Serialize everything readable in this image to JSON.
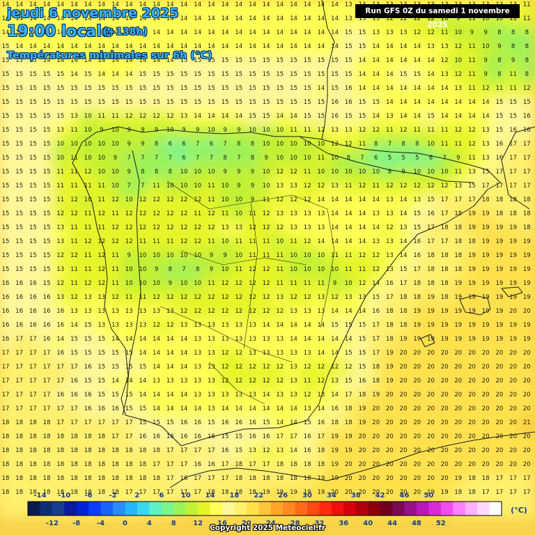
{
  "header": {
    "date": "jeudi 6 novembre 2025",
    "local_time": "19:00 locale",
    "forecast_step": "(+138h)",
    "variable": "Températures minimales sur 6h (°C)"
  },
  "run_info": "Run GFS 0Z du samedi 1 novembre 2025",
  "copyright": "Copyright 2025 Meteociel.fr",
  "legend": {
    "unit": "(°C)",
    "top_labels": [
      "-14",
      "-10",
      "-6",
      "-2",
      "2",
      "6",
      "10",
      "14",
      "18",
      "22",
      "26",
      "30",
      "34",
      "38",
      "42",
      "46",
      "50"
    ],
    "bottom_labels": [
      "-12",
      "-8",
      "-4",
      "0",
      "4",
      "8",
      "12",
      "16",
      "20",
      "24",
      "28",
      "32",
      "36",
      "40",
      "44",
      "48",
      "52"
    ],
    "colors": [
      "#0b1b4d",
      "#0d2f72",
      "#163d8f",
      "#0a1aa3",
      "#0021d6",
      "#0b3cff",
      "#1a63ff",
      "#2a8cff",
      "#26b6ff",
      "#39d8f2",
      "#5ef0c0",
      "#7cf58e",
      "#9cf25a",
      "#c2f034",
      "#e6f52a",
      "#ffff55",
      "#fff799",
      "#fff06e",
      "#ffe14d",
      "#ffc53a",
      "#ffa62a",
      "#ff8a1f",
      "#ff6a18",
      "#ff4a12",
      "#ff2a0e",
      "#f2100a",
      "#d4000e",
      "#b0000e",
      "#8c000e",
      "#700020",
      "#7a0a55",
      "#96108a",
      "#b818b8",
      "#d82ad8",
      "#f04cf0",
      "#ff80ff",
      "#ffb0ff",
      "#ffd8ff",
      "#ffffff"
    ]
  },
  "colors": {
    "title": "#39b4ff",
    "title_outline": "#0a2a55",
    "land_border": "#1a1a1a"
  },
  "grid": {
    "rows": [
      "14 14 14 14 14 14 14 14 14 14 14 14 14 14 14 14 14 14 14 14 14 14 14 14 14 13 13 13 13 13 13 13 13 13 13 13 13 13 11",
      "14 14 14 14 14 14 14 14 14 14 14 14 14 14 14 14 14 14 14 14 14 14 14 14 14 13 13 13 12 12 12 12 10 9 11 10 10 11 11",
      "14 14 14 14 14 14 14 14 14 14 14 14 14 14 14 14 14 14 14 14 14 14 14 14 14 15 15 13 13 13 12 12 11 10 9 9 8 8 8",
      "15 14 14 14 14 14 14 14 14 14 14 14 14 14 14 14 14 14 14 14 14 14 14 14 14 15 15 14 14 14 14 13 13 12 11 10 9 8 8",
      "15 15 15 14 14 14 14 14 14 14 14 14 14 15 15 15 15 15 15 15 15 15 15 15 15 15 14 14 14 14 14 14 12 10 11 9 8 9 8",
      "15 15 15 15 15 14 15 14 14 14 15 15 15 15 15 15 15 15 15 15 15 15 15 15 15 15 14 14 14 15 15 14 13 12 11 9 8 11 8",
      "15 15 15 15 15 15 15 15 15 15 15 15 15 15 15 15 15 15 15 15 15 15 15 14 15 16 14 14 14 14 14 14 14 13 11 12 11 11 12",
      "15 15 15 15 15 15 15 15 15 15 15 15 15 15 15 15 15 15 15 15 15 15 15 15 16 16 15 15 14 14 14 14 14 14 14 14 15 15 15",
      "15 15 15 15 15 13 10 11 11 12 12 12 12 13 14 14 14 14 15 15 14 14 15 15 16 15 15 14 13 14 14 15 14 14 14 14 15 15 16",
      "15 15 15 15 13 11 10 9 10 9 9 9 10 9 9 10 9 9 10 10 10 11 11 12 13 13 12 12 11 12 11 11 11 12 12 13 15 16 16",
      "15 15 15 15 10 10 10 10 10 9 9 8 6 6 7 6 7 8 8 10 10 10 10 10 12 12 11 8 7 8 8 10 11 11 12 13 16 17 17",
      "15 15 15 15 10 11 10 10 9 7 7 7 7 6 7 7 8 7 8 9 10 10 10 11 10 8 7 6 5 5 5 6 7 9 11 13 16 17 17",
      "15 15 15 15 11 11 12 10 10 9 8 8 8 10 10 10 9 9 9 10 12 12 11 10 10 10 10 10 8 9 10 10 10 11 13 15 17 17 17",
      "15 15 15 15 11 11 11 11 10 7 7 11 10 10 10 11 10 9 9 10 13 13 12 12 13 11 12 11 12 12 12 12 12 13 15 17 17 17 17",
      "15 15 15 15 11 12 10 11 12 10 12 12 12 12 12 11 10 10 9 11 12 12 12 14 14 14 14 14 13 14 13 15 17 17 17 18 18 18 18",
      "15 15 15 15 12 12 11 12 11 12 12 12 12 12 11 12 11 10 11 12 13 13 13 13 14 14 14 13 13 14 15 16 17 18 19 19 18 18 18",
      "15 15 15 15 13 11 11 11 12 12 12 12 12 12 12 12 13 13 12 12 12 13 13 13 14 14 14 14 12 13 15 17 18 18 19 19 19 19 18",
      "15 15 15 15 13 11 12 12 12 12 11 11 11 12 12 11 10 11 11 11 10 11 12 14 14 14 14 13 13 14 16 17 17 18 18 19 19 19 19",
      "15 15 15 15 12 12 11 12 11 9 10 10 10 10 10 9 9 10 11 11 11 10 10 10 11 11 12 12 13 14 16 18 18 18 19 19 19 19 19",
      "15 15 15 15 13 11 11 12 11 10 10 9 8 7 8 9 10 11 12 12 11 10 10 10 10 11 11 12 13 15 17 18 18 18 19 19 19 19 19",
      "16 16 16 15 12 11 12 12 11 10 10 10 9 10 10 11 12 12 12 12 11 11 11 11 9 10 12 14 16 17 18 18 18 19 19 19 19 19 19",
      "16 16 16 16 13 12 13 13 12 11 11 12 12 12 12 12 12 12 12 12 13 12 12 13 12 13 13 15 17 18 18 19 18 19 19 19 19 19 19",
      "16 16 16 16 16 13 13 13 13 13 13 13 13 12 12 12 12 12 12 12 12 13 13 13 14 14 14 16 18 18 19 19 19 19 19 19 19 20 20",
      "16 16 16 16 16 14 15 13 13 13 13 12 12 13 13 13 13 13 13 14 14 14 14 14 15 15 15 17 18 18 19 19 19 19 19 19 19 19 19",
      "16 17 17 16 14 15 15 15 14 14 14 14 14 14 13 13 13 13 13 13 13 14 14 14 14 14 15 17 18 19 19 19 19 19 19 19 19 19 19",
      "17 17 17 17 16 15 15 15 15 15 14 14 14 14 13 13 12 12 13 13 13 13 13 14 14 15 15 17 19 20 20 20 20 20 20 20 20 20 20",
      "17 17 17 17 17 17 16 15 15 15 15 14 14 14 13 13 12 12 12 12 12 13 12 12 12 12 15 18 19 20 20 20 20 20 20 20 20 20 20",
      "17 17 17 17 17 16 15 15 14 14 14 13 13 13 13 13 12 12 12 12 12 13 11 12 13 15 16 18 19 20 20 20 20 20 20 20 20 20 20",
      "17 17 17 17 16 16 16 15 15 15 14 14 14 14 13 13 13 13 13 14 13 13 12 13 14 17 18 19 20 20 20 20 20 20 20 20 20 20 20",
      "17 17 17 17 17 17 16 16 16 15 15 14 14 14 14 13 14 14 14 14 14 14 13 14 16 18 19 20 20 20 20 20 20 20 20 20 20 20 20",
      "18 18 18 18 17 17 17 17 17 17 15 15 15 16 16 15 16 16 16 15 14 14 15 16 18 18 19 20 20 20 20 20 20 20 20 20 20 20 21",
      "18 18 18 18 18 18 18 18 17 17 16 16 16 16 16 16 15 15 16 16 17 17 16 17 19 19 20 20 20 20 20 20 20 20 20 20 20 20 20",
      "18 18 18 18 18 18 18 18 18 18 18 18 17 17 17 17 16 15 13 12 13 14 16 18 19 19 20 20 20 20 20 20 20 20 20 20 20 20 20",
      "18 18 18 18 18 18 18 18 18 18 18 17 17 17 16 16 17 18 17 17 18 18 18 18 19 20 20 20 20 20 20 20 20 20 20 20 20 20 20",
      "18 18 18 18 18 18 18 18 18 18 18 18 17 16 17 17 17 18 18 18 18 18 18 19 19 20 20 20 20 20 20 20 20 19 18 18 17 17 17",
      "18 18 18 18 18 18 18 18 18 17 17 17 17 17 17 18 18 18 18 19 19 19 19 19 20 20 20 20 20 20 20 19 19 18 18 17 17 17 17",
      "18 18 18 18 18 18 18 18 18 18 18 18 18 19 19 19 19 19 19 19 20 20 20 20 20 20 20 20 20 20 20 20 19 18 17 17 17 17 17",
      "18 18 18 18 18 18 18 18 18 18 18 18 18 19 19 19 19 19 20 20 20 20 20 20 20 20 20 20 20 20 20 20 20 19 18 17 17 17 17",
      "18 18 18 18 18 18 18 18 18 18 18 18 18 19 19 19 19 19 20 20 20 20 20 20 20 20 20 20 20 20 20 20 20 19 18 17 17 17 17"
    ]
  }
}
